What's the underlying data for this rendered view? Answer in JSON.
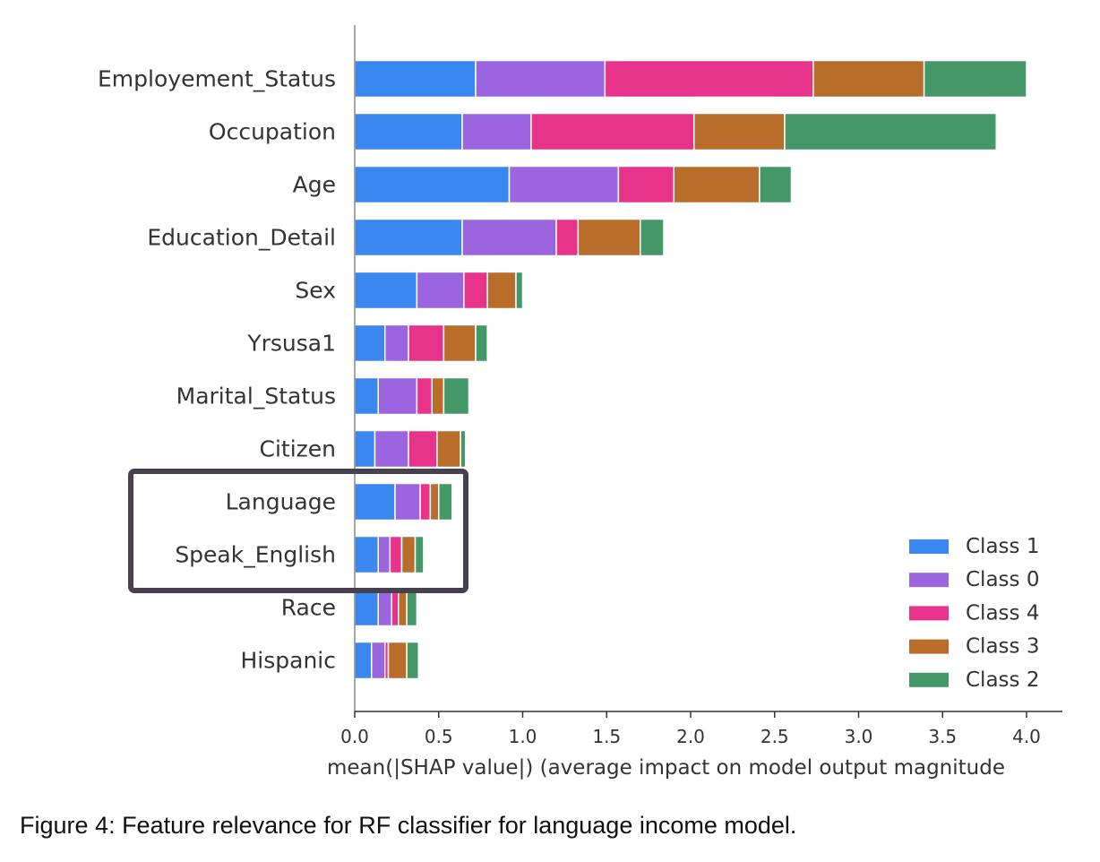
{
  "chart_data": {
    "type": "bar",
    "orientation": "horizontal",
    "stacked": true,
    "categories": [
      "Employement_Status",
      "Occupation",
      "Age",
      "Education_Detail",
      "Sex",
      "Yrsusa1",
      "Marital_Status",
      "Citizen",
      "Language",
      "Speak_English",
      "Race",
      "Hispanic"
    ],
    "series": [
      {
        "name": "Class 1",
        "color": "#3b87f0",
        "values": [
          0.72,
          0.64,
          0.92,
          0.64,
          0.37,
          0.18,
          0.14,
          0.12,
          0.24,
          0.14,
          0.14,
          0.1
        ]
      },
      {
        "name": "Class 0",
        "color": "#9b65e0",
        "values": [
          0.77,
          0.41,
          0.65,
          0.56,
          0.28,
          0.14,
          0.23,
          0.2,
          0.15,
          0.07,
          0.08,
          0.08
        ]
      },
      {
        "name": "Class 4",
        "color": "#e8338a",
        "values": [
          1.24,
          0.97,
          0.33,
          0.13,
          0.14,
          0.21,
          0.09,
          0.17,
          0.06,
          0.07,
          0.04,
          0.02
        ]
      },
      {
        "name": "Class 3",
        "color": "#b86e2a",
        "values": [
          0.66,
          0.54,
          0.51,
          0.37,
          0.17,
          0.19,
          0.07,
          0.14,
          0.05,
          0.08,
          0.05,
          0.11
        ]
      },
      {
        "name": "Class 2",
        "color": "#449868",
        "values": [
          0.61,
          1.26,
          0.19,
          0.14,
          0.04,
          0.07,
          0.15,
          0.03,
          0.08,
          0.05,
          0.06,
          0.07
        ]
      }
    ],
    "xlim": [
      0,
      4.2
    ],
    "xticks": [
      "0.0",
      "0.5",
      "1.0",
      "1.5",
      "2.0",
      "2.5",
      "3.0",
      "3.5",
      "4.0"
    ],
    "xlabel": "mean(|SHAP value|) (average impact on model output magnitude",
    "legend": {
      "placement": "bottom-right",
      "entries": [
        "Class 1",
        "Class 0",
        "Class 4",
        "Class 3",
        "Class 2"
      ]
    },
    "highlight": {
      "categories": [
        "Language",
        "Speak_English"
      ],
      "color": "#47414f"
    }
  },
  "caption": {
    "label": "Figure 4",
    "text": ": Feature relevance for RF classifier for language income model."
  }
}
